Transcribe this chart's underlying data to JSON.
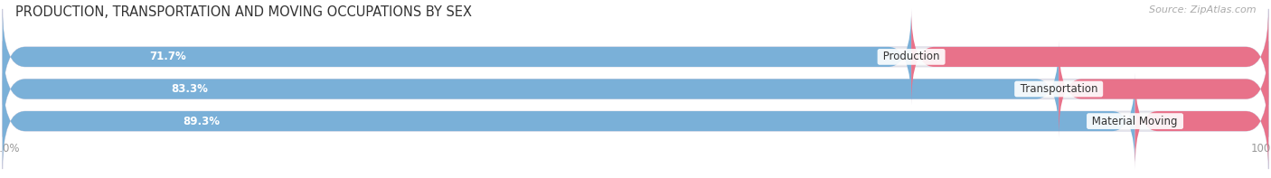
{
  "title": "PRODUCTION, TRANSPORTATION AND MOVING OCCUPATIONS BY SEX",
  "source": "Source: ZipAtlas.com",
  "categories": [
    "Material Moving",
    "Transportation",
    "Production"
  ],
  "male_pct": [
    89.3,
    83.3,
    71.7
  ],
  "female_pct": [
    10.7,
    16.7,
    28.3
  ],
  "male_color_dark": "#7ab0d8",
  "male_color_light": "#b8d4ea",
  "female_color_dark": "#e8728a",
  "female_color_light": "#f4b0c8",
  "bar_bg_color": "#eaeaee",
  "title_fontsize": 10.5,
  "label_fontsize": 8.5,
  "tick_fontsize": 8.5,
  "source_fontsize": 8,
  "figsize": [
    14.06,
    1.97
  ],
  "dpi": 100
}
